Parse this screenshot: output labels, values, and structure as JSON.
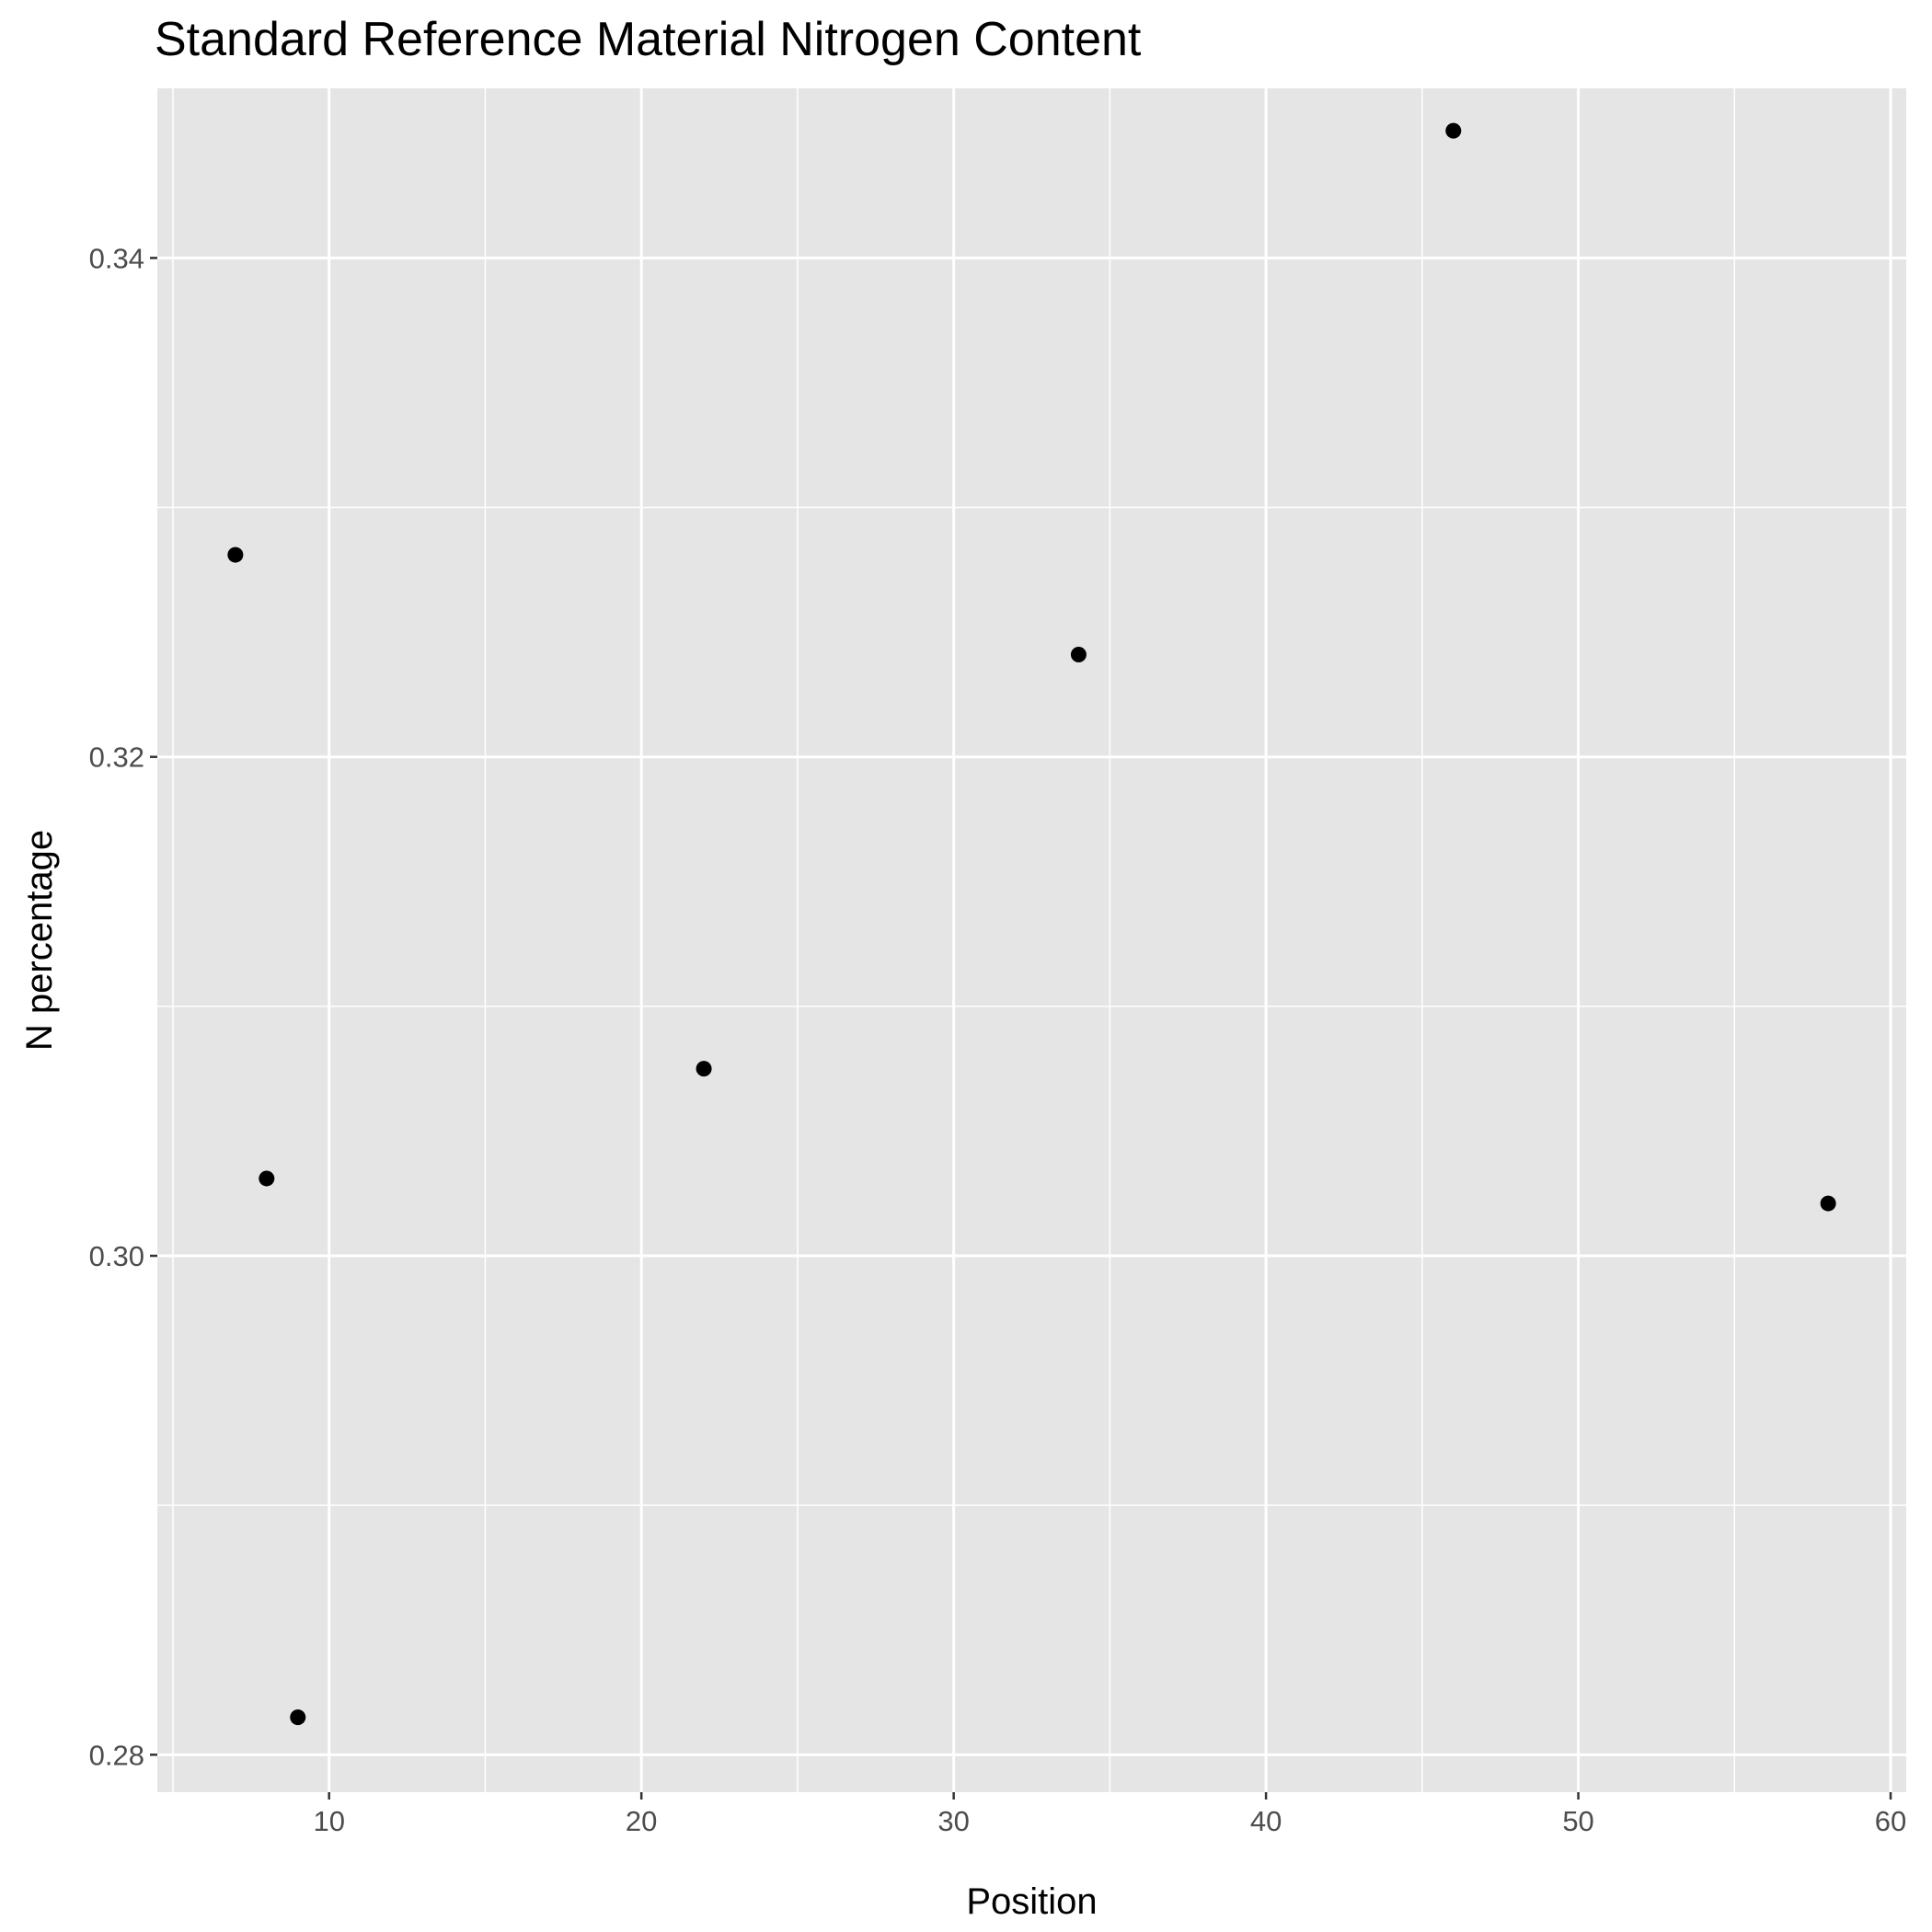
{
  "chart_data": {
    "type": "scatter",
    "title": "Standard Reference Material Nitrogen Content",
    "xlabel": "Position",
    "ylabel": "N percentage",
    "xlim": [
      4.5,
      60.5
    ],
    "ylim": [
      0.2785,
      0.3468
    ],
    "x_ticks": [
      10,
      20,
      30,
      40,
      50,
      60
    ],
    "x_tick_labels": [
      "10",
      "20",
      "30",
      "40",
      "50",
      "60"
    ],
    "y_ticks": [
      0.28,
      0.3,
      0.32,
      0.34
    ],
    "y_tick_labels": [
      "0.28",
      "0.30",
      "0.32",
      "0.34"
    ],
    "grid": true,
    "legend": "none",
    "colors": {
      "panel_background": "#e5e5e5",
      "grid": "#ffffff",
      "point": "#000000",
      "tick": "#333333"
    },
    "points": [
      {
        "x": 7,
        "y": 0.3281
      },
      {
        "x": 8,
        "y": 0.3031
      },
      {
        "x": 9,
        "y": 0.2815
      },
      {
        "x": 22,
        "y": 0.3075
      },
      {
        "x": 34,
        "y": 0.3241
      },
      {
        "x": 46,
        "y": 0.3451
      },
      {
        "x": 58,
        "y": 0.3021
      }
    ]
  }
}
